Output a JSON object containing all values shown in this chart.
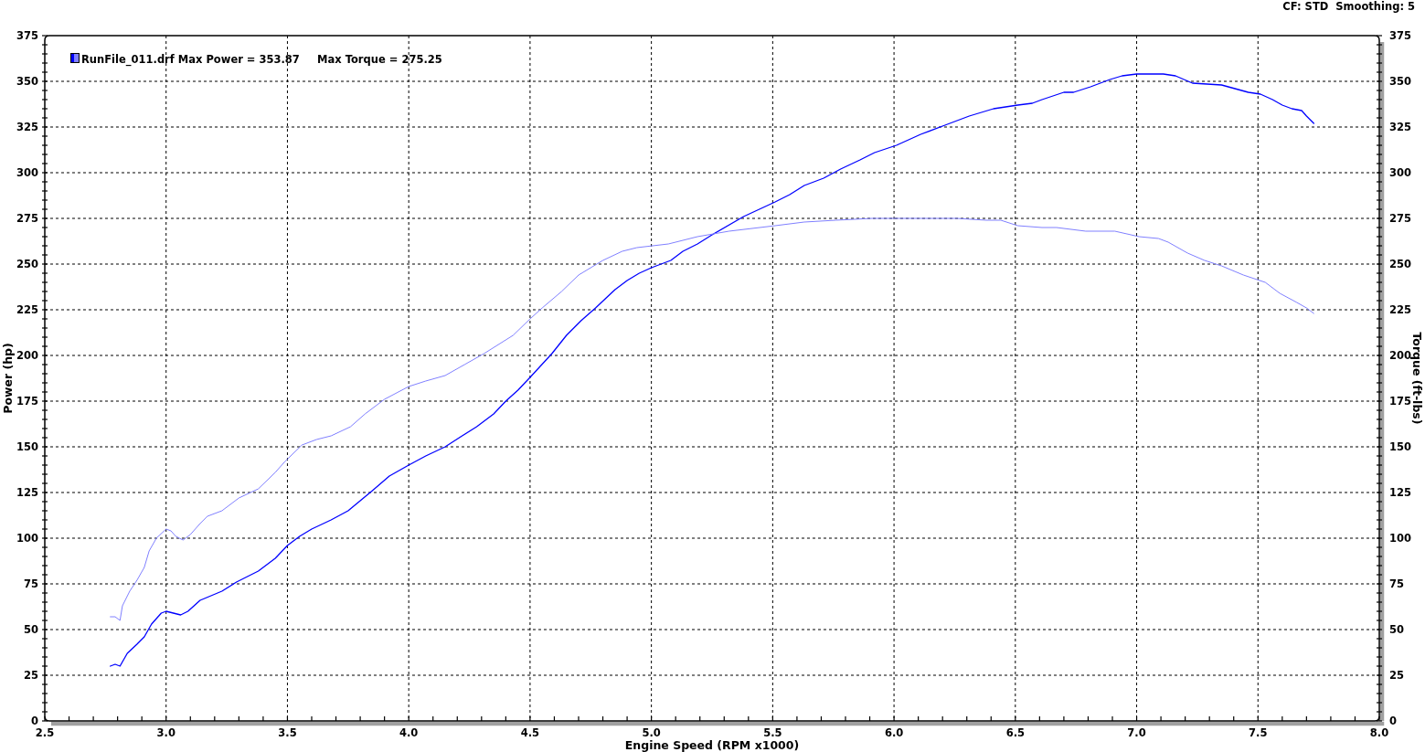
{
  "chart_data": {
    "type": "line",
    "xlabel": "Engine Speed (RPM x1000)",
    "ylabel": "Power (hp)",
    "y2label": "Torque (ft-lbs)",
    "annotations": [
      "CF: STD  Smoothing: 5",
      "RunFile_011.drf Max Power = 353.87",
      "Max Torque = 275.25"
    ],
    "xlim": [
      2.5,
      8.0
    ],
    "xticks": [
      2.5,
      {
        "value": 2.6,
        "label": null
      },
      {
        "value": 2.7,
        "label": null
      },
      {
        "value": 2.8,
        "label": null
      },
      {
        "value": 2.9,
        "label": null
      },
      {
        "value": 3,
        "label": "3.0"
      },
      {
        "value": 3.1,
        "label": null
      },
      {
        "value": 3.2,
        "label": null
      },
      {
        "value": 3.3,
        "label": null
      },
      {
        "value": 3.4,
        "label": null
      },
      3.5,
      {
        "value": 3.6,
        "label": null
      },
      {
        "value": 3.7,
        "label": null
      },
      {
        "value": 3.8,
        "label": null
      },
      {
        "value": 3.9,
        "label": null
      },
      {
        "value": 4,
        "label": "4.0"
      },
      {
        "value": 4.1,
        "label": null
      },
      {
        "value": 4.2,
        "label": null
      },
      {
        "value": 4.3,
        "label": null
      },
      {
        "value": 4.4,
        "label": null
      },
      4.5,
      {
        "value": 4.6,
        "label": null
      },
      {
        "value": 4.7,
        "label": null
      },
      {
        "value": 4.8,
        "label": null
      },
      {
        "value": 4.9,
        "label": null
      },
      {
        "value": 5,
        "label": "5.0"
      },
      {
        "value": 5.1,
        "label": null
      },
      {
        "value": 5.2,
        "label": null
      },
      {
        "value": 5.3,
        "label": null
      },
      {
        "value": 5.4,
        "label": null
      },
      5.5,
      {
        "value": 5.6,
        "label": null
      },
      {
        "value": 5.7,
        "label": null
      },
      {
        "value": 5.8,
        "label": null
      },
      {
        "value": 5.9,
        "label": null
      },
      {
        "value": 6,
        "label": "6.0"
      },
      {
        "value": 6.1,
        "label": null
      },
      {
        "value": 6.2,
        "label": null
      },
      {
        "value": 6.3,
        "label": null
      },
      {
        "value": 6.4,
        "label": null
      },
      6.5,
      {
        "value": 6.6,
        "label": null
      },
      {
        "value": 6.7,
        "label": null
      },
      {
        "value": 6.8,
        "label": null
      },
      {
        "value": 6.9,
        "label": null
      },
      {
        "value": 7,
        "label": "7.0"
      },
      {
        "value": 7.1,
        "label": null
      },
      {
        "value": 7.2,
        "label": null
      },
      {
        "value": 7.3,
        "label": null
      },
      {
        "value": 7.4,
        "label": null
      },
      7.5,
      {
        "value": 7.6,
        "label": null
      },
      {
        "value": 7.7,
        "label": null
      },
      {
        "value": 7.8,
        "label": null
      },
      {
        "value": 7.9,
        "label": null
      },
      {
        "value": 8,
        "label": "8.0"
      }
    ],
    "ylim": [
      0,
      375
    ],
    "yticks": [
      0,
      {
        "value": 5,
        "label": null
      },
      {
        "value": 10,
        "label": null
      },
      {
        "value": 15,
        "label": null
      },
      {
        "value": 20,
        "label": null
      },
      25,
      {
        "value": 30,
        "label": null
      },
      {
        "value": 35,
        "label": null
      },
      {
        "value": 40,
        "label": null
      },
      {
        "value": 45,
        "label": null
      },
      50,
      {
        "value": 55,
        "label": null
      },
      {
        "value": 60,
        "label": null
      },
      {
        "value": 65,
        "label": null
      },
      {
        "value": 70,
        "label": null
      },
      75,
      {
        "value": 80,
        "label": null
      },
      {
        "value": 85,
        "label": null
      },
      {
        "value": 90,
        "label": null
      },
      {
        "value": 95,
        "label": null
      },
      100,
      {
        "value": 105,
        "label": null
      },
      {
        "value": 110,
        "label": null
      },
      {
        "value": 115,
        "label": null
      },
      {
        "value": 120,
        "label": null
      },
      125,
      {
        "value": 130,
        "label": null
      },
      {
        "value": 135,
        "label": null
      },
      {
        "value": 140,
        "label": null
      },
      {
        "value": 145,
        "label": null
      },
      150,
      {
        "value": 155,
        "label": null
      },
      {
        "value": 160,
        "label": null
      },
      {
        "value": 165,
        "label": null
      },
      {
        "value": 170,
        "label": null
      },
      175,
      {
        "value": 180,
        "label": null
      },
      {
        "value": 185,
        "label": null
      },
      {
        "value": 190,
        "label": null
      },
      {
        "value": 195,
        "label": null
      },
      200,
      {
        "value": 205,
        "label": null
      },
      {
        "value": 210,
        "label": null
      },
      {
        "value": 215,
        "label": null
      },
      {
        "value": 220,
        "label": null
      },
      225,
      {
        "value": 230,
        "label": null
      },
      {
        "value": 235,
        "label": null
      },
      {
        "value": 240,
        "label": null
      },
      {
        "value": 245,
        "label": null
      },
      250,
      {
        "value": 255,
        "label": null
      },
      {
        "value": 260,
        "label": null
      },
      {
        "value": 265,
        "label": null
      },
      {
        "value": 270,
        "label": null
      },
      275,
      {
        "value": 280,
        "label": null
      },
      {
        "value": 285,
        "label": null
      },
      {
        "value": 290,
        "label": null
      },
      {
        "value": 295,
        "label": null
      },
      300,
      {
        "value": 305,
        "label": null
      },
      {
        "value": 310,
        "label": null
      },
      {
        "value": 315,
        "label": null
      },
      {
        "value": 320,
        "label": null
      },
      325,
      {
        "value": 330,
        "label": null
      },
      {
        "value": 335,
        "label": null
      },
      {
        "value": 340,
        "label": null
      },
      {
        "value": 345,
        "label": null
      },
      350,
      {
        "value": 355,
        "label": null
      },
      {
        "value": 360,
        "label": null
      },
      {
        "value": 365,
        "label": null
      },
      {
        "value": 370,
        "label": null
      },
      375
    ],
    "y2lim": [
      0,
      375
    ],
    "y2ticks": [
      0,
      {
        "value": 5,
        "label": null
      },
      {
        "value": 10,
        "label": null
      },
      {
        "value": 15,
        "label": null
      },
      {
        "value": 20,
        "label": null
      },
      25,
      {
        "value": 30,
        "label": null
      },
      {
        "value": 35,
        "label": null
      },
      {
        "value": 40,
        "label": null
      },
      {
        "value": 45,
        "label": null
      },
      50,
      {
        "value": 55,
        "label": null
      },
      {
        "value": 60,
        "label": null
      },
      {
        "value": 65,
        "label": null
      },
      {
        "value": 70,
        "label": null
      },
      75,
      {
        "value": 80,
        "label": null
      },
      {
        "value": 85,
        "label": null
      },
      {
        "value": 90,
        "label": null
      },
      {
        "value": 95,
        "label": null
      },
      100,
      {
        "value": 105,
        "label": null
      },
      {
        "value": 110,
        "label": null
      },
      {
        "value": 115,
        "label": null
      },
      {
        "value": 120,
        "label": null
      },
      125,
      {
        "value": 130,
        "label": null
      },
      {
        "value": 135,
        "label": null
      },
      {
        "value": 140,
        "label": null
      },
      {
        "value": 145,
        "label": null
      },
      150,
      {
        "value": 155,
        "label": null
      },
      {
        "value": 160,
        "label": null
      },
      {
        "value": 165,
        "label": null
      },
      {
        "value": 170,
        "label": null
      },
      175,
      {
        "value": 180,
        "label": null
      },
      {
        "value": 185,
        "label": null
      },
      {
        "value": 190,
        "label": null
      },
      {
        "value": 195,
        "label": null
      },
      200,
      {
        "value": 205,
        "label": null
      },
      {
        "value": 210,
        "label": null
      },
      {
        "value": 215,
        "label": null
      },
      {
        "value": 220,
        "label": null
      },
      225,
      {
        "value": 230,
        "label": null
      },
      {
        "value": 235,
        "label": null
      },
      {
        "value": 240,
        "label": null
      },
      {
        "value": 245,
        "label": null
      },
      250,
      {
        "value": 255,
        "label": null
      },
      {
        "value": 260,
        "label": null
      },
      {
        "value": 265,
        "label": null
      },
      {
        "value": 270,
        "label": null
      },
      275,
      {
        "value": 280,
        "label": null
      },
      {
        "value": 285,
        "label": null
      },
      {
        "value": 290,
        "label": null
      },
      {
        "value": 295,
        "label": null
      },
      300,
      {
        "value": 305,
        "label": null
      },
      {
        "value": 310,
        "label": null
      },
      {
        "value": 315,
        "label": null
      },
      {
        "value": 320,
        "label": null
      },
      325,
      {
        "value": 330,
        "label": null
      },
      {
        "value": 335,
        "label": null
      },
      {
        "value": 340,
        "label": null
      },
      {
        "value": 345,
        "label": null
      },
      350,
      {
        "value": 355,
        "label": null
      },
      {
        "value": 360,
        "label": null
      },
      {
        "value": 365,
        "label": null
      },
      {
        "value": 370,
        "label": null
      },
      375
    ],
    "grid": true,
    "series": [
      {
        "color": "#0000ff",
        "x": [
          2.77,
          2.79,
          2.81,
          2.84,
          2.88,
          2.91,
          2.94,
          2.98,
          3.0,
          3.06,
          3.09,
          3.14,
          3.23,
          3.29,
          3.38,
          3.45,
          3.5,
          3.55,
          3.6,
          3.68,
          3.75,
          3.85,
          3.92,
          4.0,
          4.07,
          4.15,
          4.22,
          4.28,
          4.35,
          4.4,
          4.45,
          4.5,
          4.59,
          4.65,
          4.71,
          4.77,
          4.81,
          4.85,
          4.9,
          4.95,
          5.0,
          5.08,
          5.13,
          5.19,
          5.25,
          5.38,
          5.51,
          5.57,
          5.63,
          5.71,
          5.78,
          5.86,
          5.92,
          6.01,
          6.11,
          6.21,
          6.31,
          6.41,
          6.51,
          6.57,
          6.61,
          6.7,
          6.74,
          6.81,
          6.89,
          6.94,
          7.0,
          7.06,
          7.11,
          7.16,
          7.23,
          7.35,
          7.46,
          7.51,
          7.56,
          7.6,
          7.64,
          7.68,
          7.7,
          7.73
        ],
        "values": [
          30,
          31,
          30,
          37,
          42,
          46,
          53,
          59,
          60,
          58,
          60,
          66,
          71,
          76,
          82,
          89,
          96,
          101,
          105,
          110,
          115,
          126,
          134,
          140,
          145,
          150,
          156,
          161,
          168,
          175,
          181,
          188,
          201,
          211,
          219,
          226,
          231,
          236,
          241,
          245,
          248,
          252,
          257,
          261,
          266,
          276,
          284,
          288,
          293,
          297,
          302,
          307,
          311,
          315,
          321,
          326,
          331,
          335,
          337,
          338,
          340,
          344,
          344,
          347,
          351,
          353,
          354,
          354,
          354,
          353,
          349,
          348,
          344,
          343,
          340,
          337,
          335,
          334,
          331,
          327
        ]
      },
      {
        "color": "#8080ff",
        "axis": "y2",
        "x": [
          2.77,
          2.79,
          2.81,
          2.82,
          2.85,
          2.88,
          2.91,
          2.93,
          2.96,
          3.0,
          3.02,
          3.04,
          3.07,
          3.1,
          3.14,
          3.17,
          3.23,
          3.3,
          3.38,
          3.45,
          3.49,
          3.56,
          3.62,
          3.68,
          3.76,
          3.82,
          3.9,
          4.0,
          4.07,
          4.15,
          4.23,
          4.31,
          4.43,
          4.5,
          4.55,
          4.63,
          4.7,
          4.8,
          4.88,
          4.94,
          5.07,
          5.19,
          5.32,
          5.51,
          5.63,
          5.76,
          5.91,
          6.26,
          6.38,
          6.44,
          6.51,
          6.61,
          6.67,
          6.79,
          6.91,
          7.01,
          7.09,
          7.13,
          7.21,
          7.28,
          7.35,
          7.44,
          7.53,
          7.59,
          7.66,
          7.7,
          7.73
        ],
        "values": [
          57,
          57,
          55,
          63,
          71,
          77,
          84,
          93,
          100,
          105,
          104,
          101,
          99,
          102,
          108,
          112,
          115,
          122,
          127,
          136,
          142,
          151,
          154,
          156,
          161,
          168,
          176,
          183,
          186,
          189,
          195,
          201,
          211,
          220,
          226,
          235,
          244,
          252,
          257,
          259,
          261,
          265,
          268,
          271,
          273,
          274,
          275,
          275,
          274,
          274,
          271,
          270,
          270,
          268,
          268,
          265,
          264,
          262,
          256,
          252,
          249,
          244,
          240,
          234,
          229,
          226,
          223
        ]
      }
    ]
  }
}
